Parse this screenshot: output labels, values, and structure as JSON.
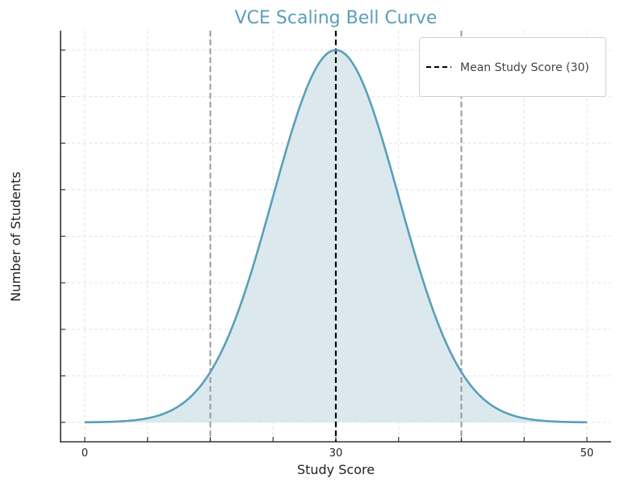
{
  "chart_data": {
    "type": "area",
    "title": "VCE Scaling Bell Curve",
    "xlabel": "Study Score",
    "ylabel": "Number of Students",
    "distribution": "normal",
    "mean": 30,
    "x_tick_labels": [
      "0",
      "30",
      "50"
    ],
    "y_tick_labels": [],
    "reference_lines": [
      {
        "name": "Mean Study Score (30)",
        "position": "mean",
        "style": "dashed",
        "color": "#000000"
      },
      {
        "position": "mean - 2 sd",
        "style": "dashed",
        "color": "#999999"
      },
      {
        "position": "mean + 2 sd",
        "style": "dashed",
        "color": "#999999"
      }
    ],
    "legend": {
      "placement": "top-right",
      "entries": [
        "Mean Study Score (30)"
      ]
    },
    "grid": true,
    "colors": {
      "title": "#5a9fba",
      "curve": "#5a9fba",
      "fill": "#dbe9ee",
      "grid": "#e4e4e4"
    }
  }
}
